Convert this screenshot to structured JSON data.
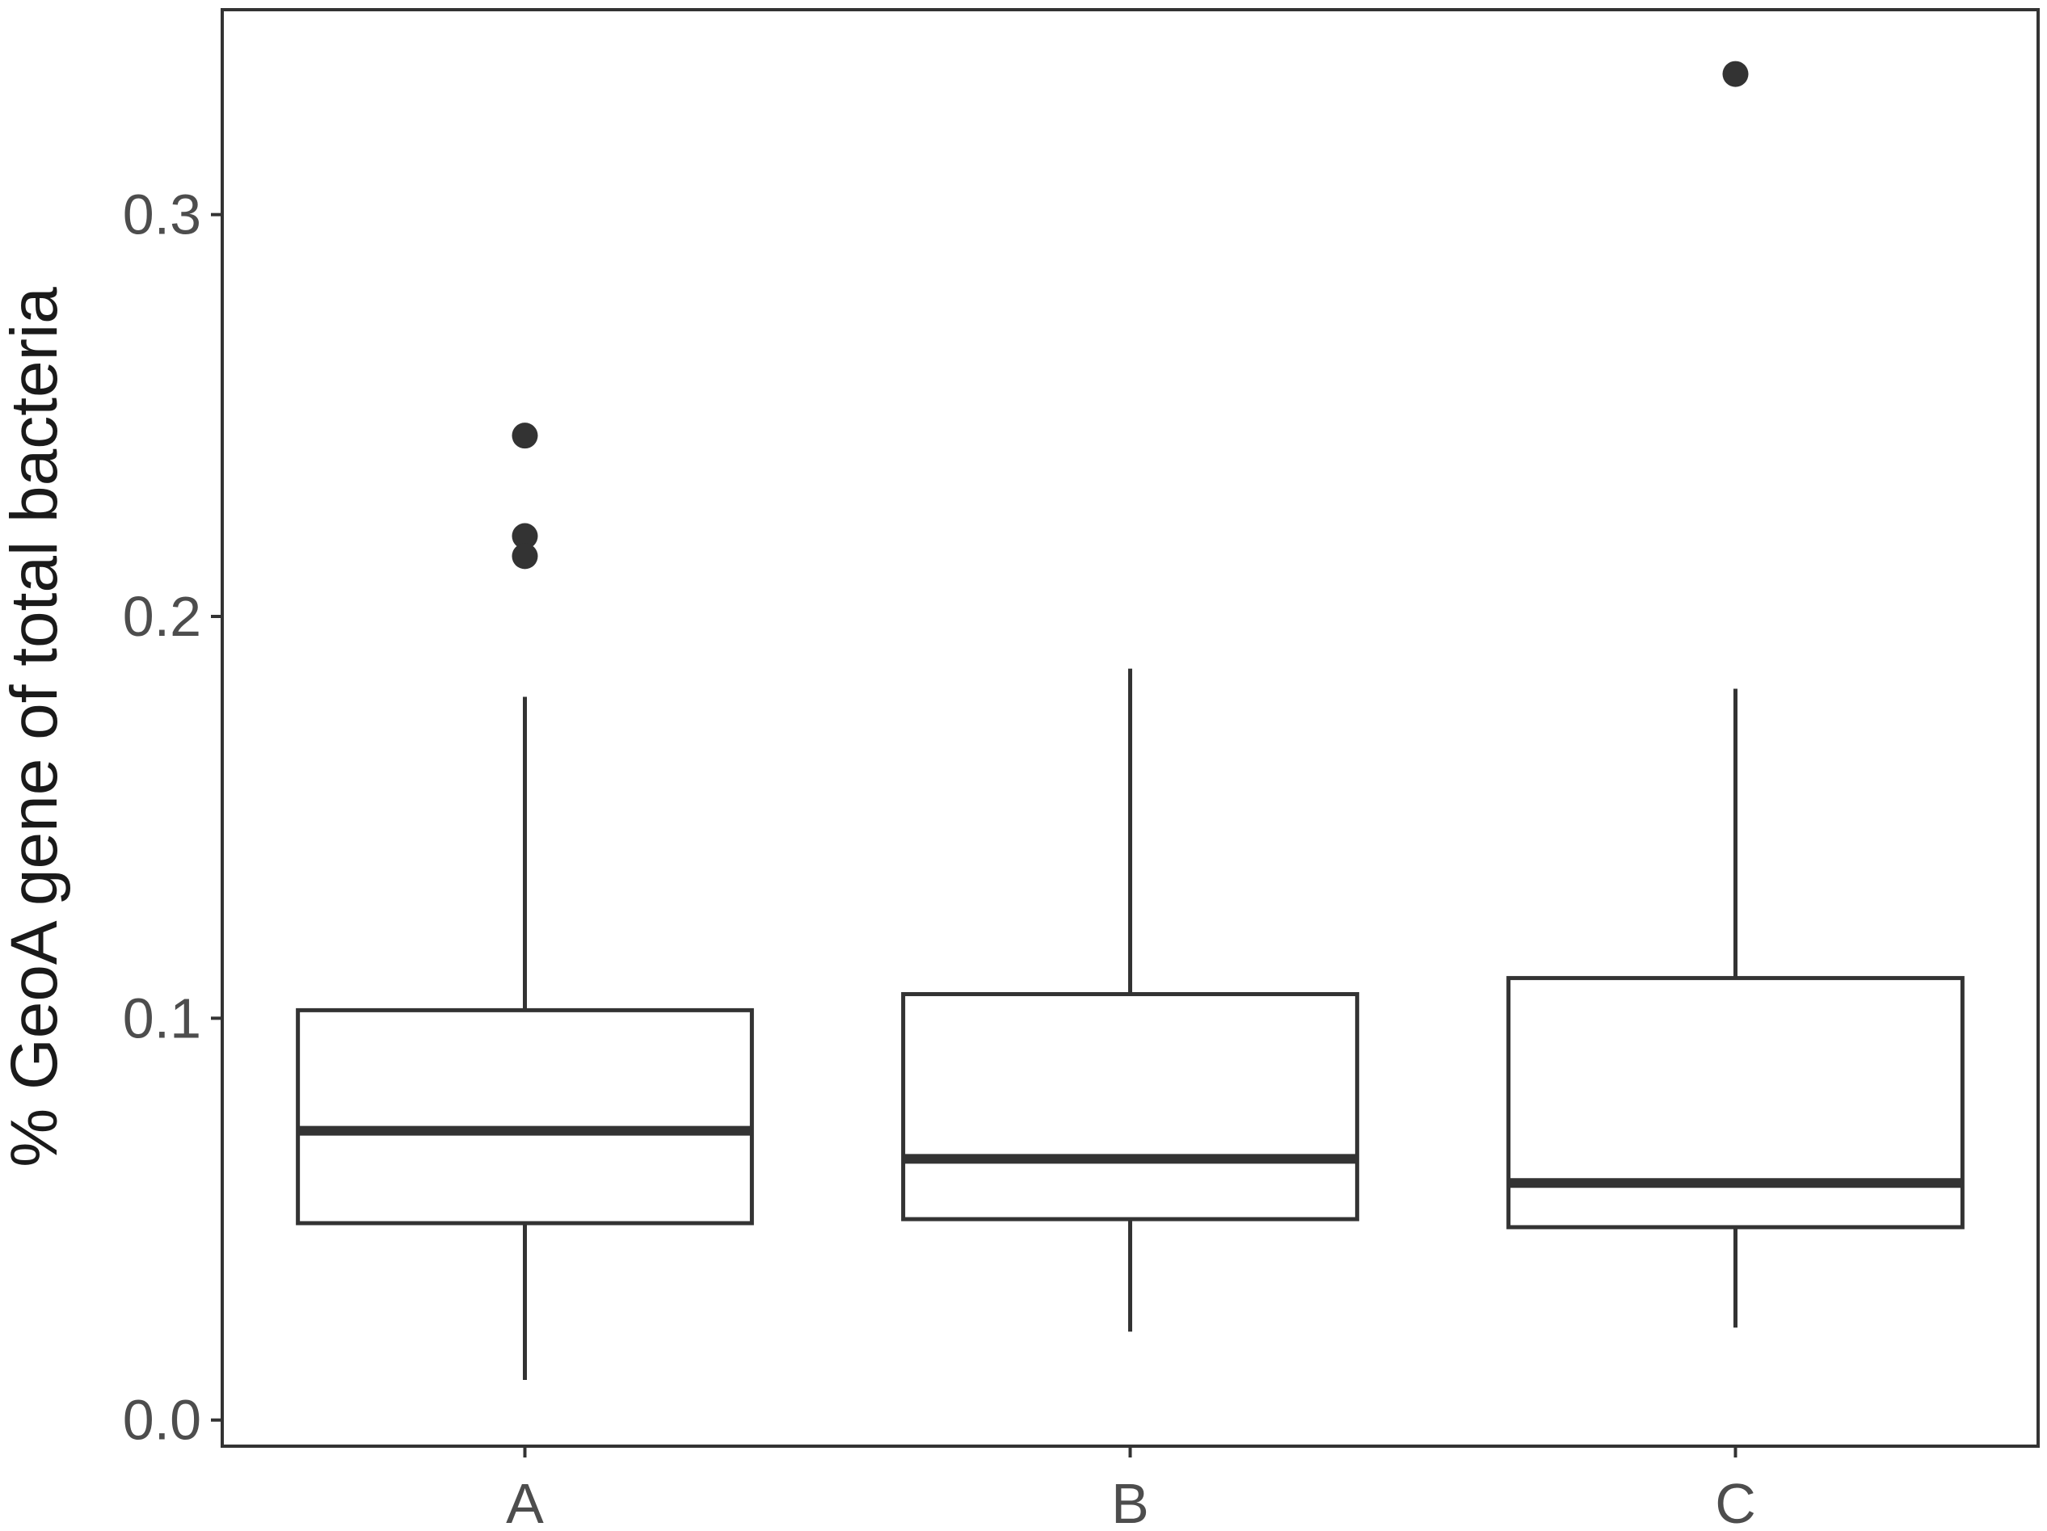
{
  "chart_data": {
    "type": "box",
    "ylabel": "% GeoA gene of total bacteria",
    "xlabel": "",
    "ylim": [
      -0.0065,
      0.351
    ],
    "yticks": [
      0.0,
      0.1,
      0.2,
      0.3
    ],
    "ytick_labels": [
      "0.0",
      "0.1",
      "0.2",
      "0.3"
    ],
    "grid": false,
    "colors": {
      "stroke": "#333333",
      "fill": "#ffffff",
      "text": "#4d4d4d"
    },
    "categories": [
      "A",
      "B",
      "C"
    ],
    "boxes": [
      {
        "category": "A",
        "whisker_low": 0.01,
        "q1": 0.049,
        "median": 0.072,
        "q3": 0.102,
        "whisker_high": 0.18,
        "outliers": [
          0.245,
          0.22,
          0.215
        ]
      },
      {
        "category": "B",
        "whisker_low": 0.022,
        "q1": 0.05,
        "median": 0.065,
        "q3": 0.106,
        "whisker_high": 0.187,
        "outliers": []
      },
      {
        "category": "C",
        "whisker_low": 0.023,
        "q1": 0.048,
        "median": 0.059,
        "q3": 0.11,
        "whisker_high": 0.182,
        "outliers": [
          0.335
        ]
      }
    ]
  }
}
